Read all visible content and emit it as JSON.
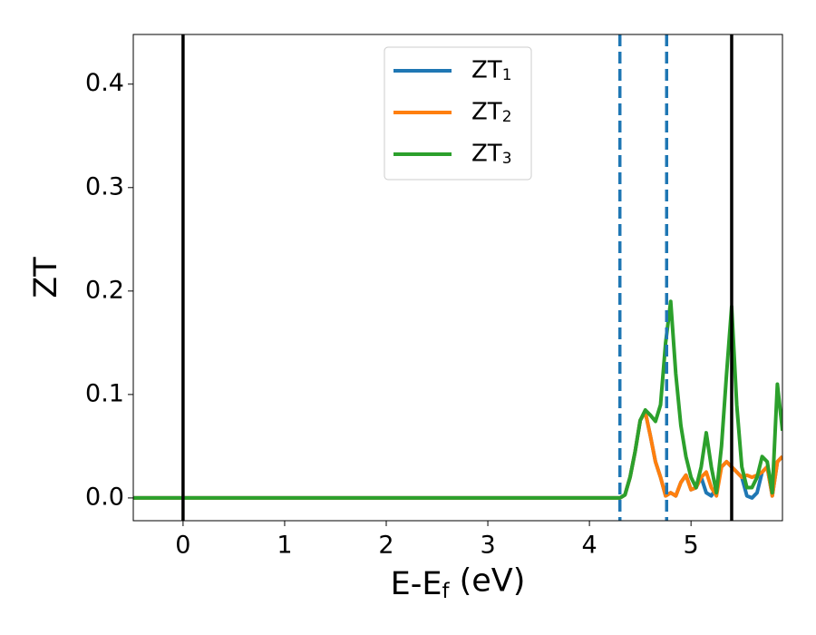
{
  "chart_data": {
    "type": "line",
    "xlabel": "E-Ef (eV)",
    "ylabel": "ZT",
    "xlim": [
      -0.49,
      5.9
    ],
    "ylim": [
      -0.022,
      0.448
    ],
    "xticks": [
      0,
      1,
      2,
      3,
      4,
      5
    ],
    "yticks": [
      {
        "value": 0,
        "label": "0.0"
      },
      0.1,
      0.2,
      0.3,
      0.4
    ],
    "legend": "upper center",
    "x": [
      -0.5,
      4.3,
      4.35,
      4.4,
      4.45,
      4.5,
      4.55,
      4.6,
      4.65,
      4.7,
      4.75,
      4.8,
      4.85,
      4.9,
      4.95,
      5.0,
      5.05,
      5.1,
      5.15,
      5.2,
      5.25,
      5.3,
      5.35,
      5.4,
      5.45,
      5.5,
      5.55,
      5.6,
      5.65,
      5.7,
      5.75,
      5.8,
      5.85,
      5.9
    ],
    "series": [
      {
        "name": "ZT1",
        "color": "#1f77b4",
        "values": [
          0,
          0,
          0.003,
          0.02,
          0.045,
          0.075,
          0.083,
          0.06,
          0.035,
          0.02,
          0.002,
          0.005,
          0.002,
          0.015,
          0.022,
          0.008,
          0.01,
          0.02,
          0.005,
          0.002,
          0.01,
          0.03,
          0.035,
          0.03,
          0.025,
          0.02,
          0.002,
          0.0,
          0.005,
          0.025,
          0.03,
          0.002,
          0.035,
          0.04
        ]
      },
      {
        "name": "ZT2",
        "color": "#ff7f0e",
        "values": [
          0,
          0,
          0.003,
          0.02,
          0.045,
          0.075,
          0.083,
          0.06,
          0.035,
          0.02,
          0.002,
          0.005,
          0.002,
          0.015,
          0.022,
          0.008,
          0.01,
          0.02,
          0.025,
          0.01,
          0.002,
          0.03,
          0.035,
          0.03,
          0.025,
          0.02,
          0.022,
          0.02,
          0.022,
          0.025,
          0.03,
          0.002,
          0.035,
          0.04
        ]
      },
      {
        "name": "ZT3",
        "color": "#2ca02c",
        "values": [
          0,
          0,
          0.003,
          0.02,
          0.045,
          0.075,
          0.085,
          0.08,
          0.074,
          0.09,
          0.15,
          0.19,
          0.12,
          0.07,
          0.04,
          0.02,
          0.01,
          0.03,
          0.063,
          0.03,
          0.005,
          0.05,
          0.12,
          0.185,
          0.09,
          0.03,
          0.01,
          0.01,
          0.02,
          0.04,
          0.035,
          0.005,
          0.11,
          0.065
        ]
      }
    ],
    "vlines": [
      {
        "x": 0,
        "color": "#000000",
        "style": "solid"
      },
      {
        "x": 4.3,
        "color": "#1f77b4",
        "style": "dashed"
      },
      {
        "x": 4.76,
        "color": "#1f77b4",
        "style": "dashed"
      },
      {
        "x": 5.4,
        "color": "#000000",
        "style": "solid"
      }
    ]
  }
}
